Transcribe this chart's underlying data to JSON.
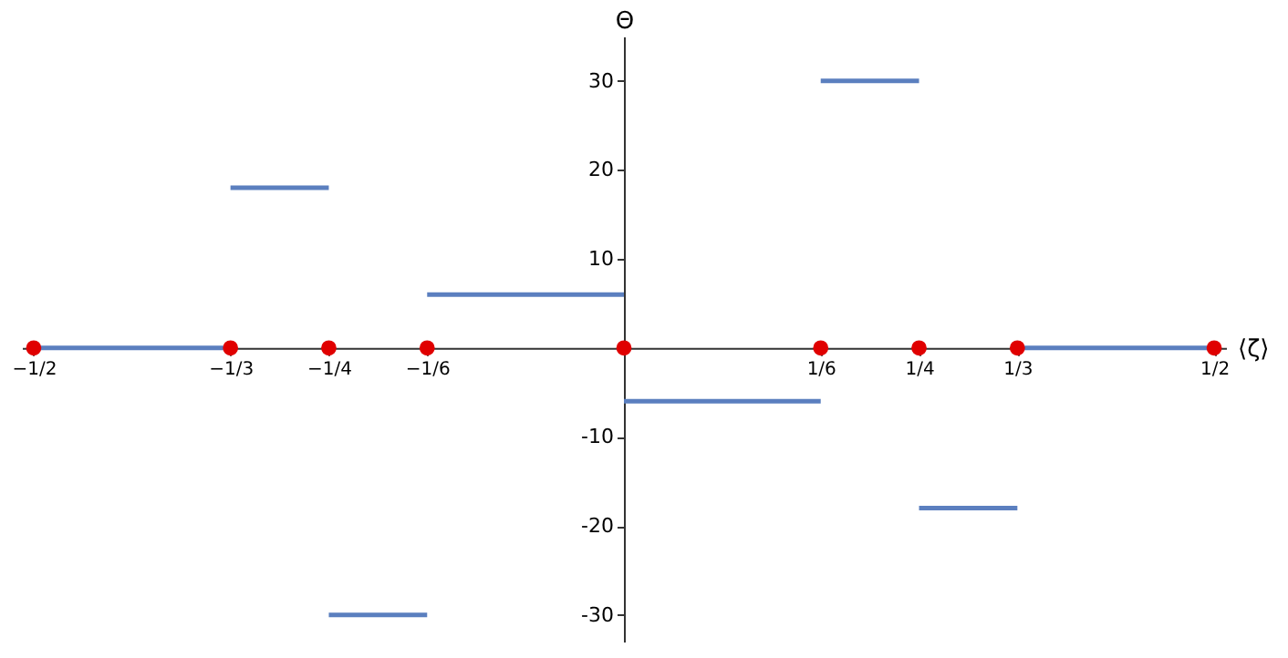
{
  "chart_data": {
    "type": "line",
    "xlabel": "⟨ζ⟩",
    "ylabel": "Θ",
    "grid": false,
    "xlim": [
      -0.51,
      0.51
    ],
    "ylim": [
      -33,
      35
    ],
    "xticks": [
      {
        "value": -0.5,
        "label": "−1/2"
      },
      {
        "value": -0.3333,
        "label": "−1/3"
      },
      {
        "value": -0.25,
        "label": "−1/4"
      },
      {
        "value": -0.1667,
        "label": "−1/6"
      },
      {
        "value": 0.1667,
        "label": "1/6"
      },
      {
        "value": 0.25,
        "label": "1/4"
      },
      {
        "value": 0.3333,
        "label": "1/3"
      },
      {
        "value": 0.5,
        "label": "1/2"
      }
    ],
    "yticks": [
      -30,
      -20,
      -10,
      10,
      20,
      30
    ],
    "series": [
      {
        "color": "#5b7fbf",
        "x": [
          -0.5,
          -0.3333
        ],
        "values": [
          0,
          0
        ]
      },
      {
        "color": "#5b7fbf",
        "x": [
          -0.3333,
          -0.25
        ],
        "values": [
          18,
          18
        ]
      },
      {
        "color": "#5b7fbf",
        "x": [
          -0.25,
          -0.1667
        ],
        "values": [
          -30,
          -30
        ]
      },
      {
        "color": "#5b7fbf",
        "x": [
          -0.1667,
          0
        ],
        "values": [
          6,
          6
        ]
      },
      {
        "color": "#5b7fbf",
        "x": [
          0,
          0.1667
        ],
        "values": [
          -6,
          -6
        ]
      },
      {
        "color": "#5b7fbf",
        "x": [
          0.1667,
          0.25
        ],
        "values": [
          30,
          30
        ]
      },
      {
        "color": "#5b7fbf",
        "x": [
          0.25,
          0.3333
        ],
        "values": [
          -18,
          -18
        ]
      },
      {
        "color": "#5b7fbf",
        "x": [
          0.3333,
          0.5
        ],
        "values": [
          0,
          0
        ]
      },
      {
        "type": "scatter",
        "color": "#e00000",
        "x": [
          -0.5,
          -0.3333,
          -0.25,
          -0.1667,
          0,
          0.1667,
          0.25,
          0.3333,
          0.5
        ],
        "values": [
          0,
          0,
          0,
          0,
          0,
          0,
          0,
          0,
          0
        ]
      }
    ]
  }
}
